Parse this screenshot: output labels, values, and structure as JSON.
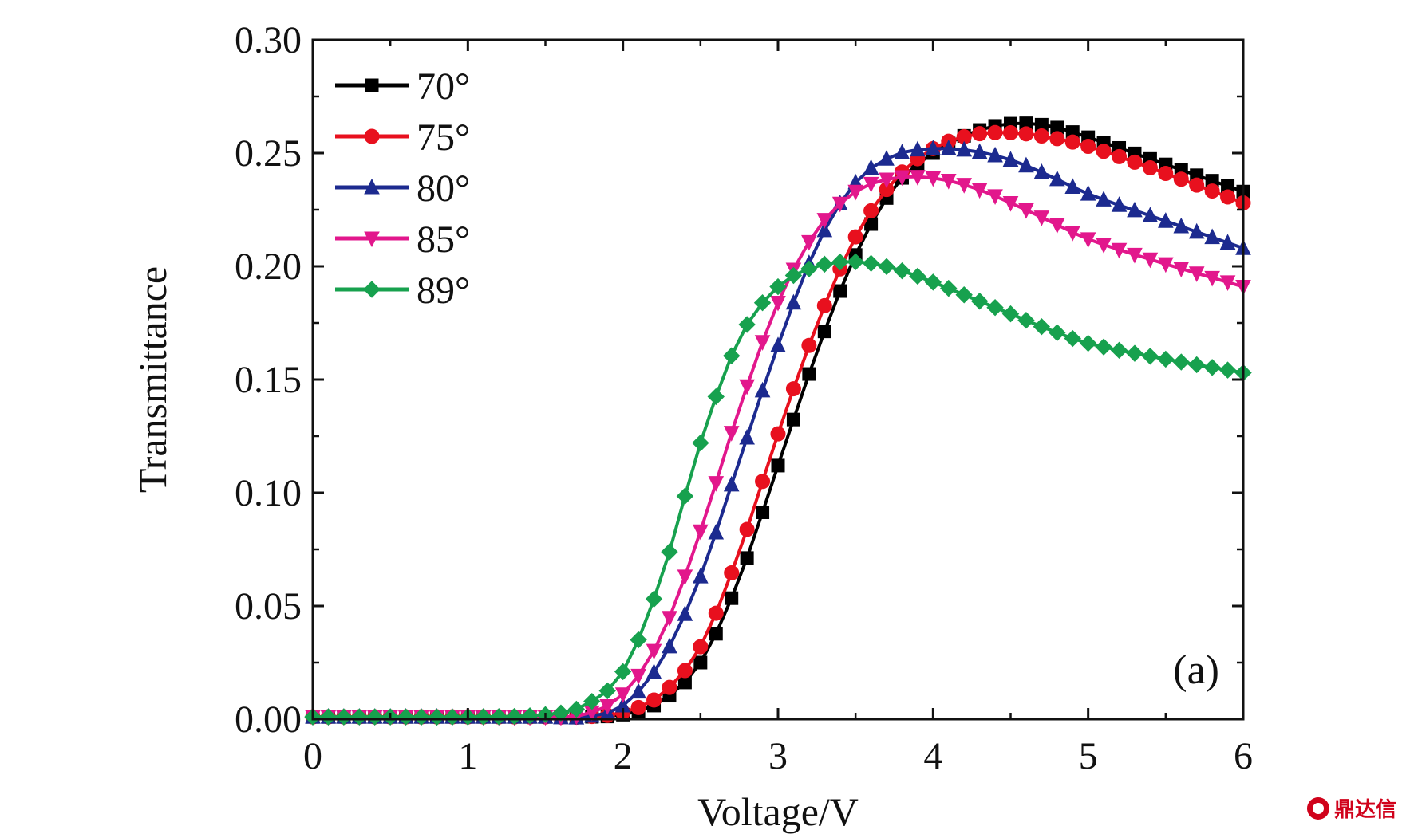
{
  "chart_data": {
    "type": "line",
    "title": "",
    "xlabel": "Voltage/V",
    "ylabel": "Transmittance",
    "xlim": [
      0,
      6
    ],
    "ylim": [
      0,
      0.3
    ],
    "xticks": [
      0,
      1,
      2,
      3,
      4,
      5,
      6
    ],
    "xtick_labels": [
      "0",
      "1",
      "2",
      "3",
      "4",
      "5",
      "6"
    ],
    "yticks": [
      0,
      0.05,
      0.1,
      0.15,
      0.2,
      0.25,
      0.3
    ],
    "ytick_labels": [
      "0.00",
      "0.05",
      "0.10",
      "0.15",
      "0.20",
      "0.25",
      "0.30"
    ],
    "grid": false,
    "legend_position": "top-left",
    "panel_label": "(a)",
    "x": [
      0.0,
      0.5,
      1.0,
      1.5,
      1.75,
      2.0,
      2.25,
      2.5,
      2.75,
      3.0,
      3.25,
      3.5,
      3.75,
      4.0,
      4.25,
      4.5,
      4.75,
      5.0,
      5.5,
      6.0
    ],
    "series": [
      {
        "name": "70°",
        "color": "#000000",
        "marker": "square",
        "values": [
          0.001,
          0.001,
          0.001,
          0.001,
          0.001,
          0.002,
          0.008,
          0.025,
          0.062,
          0.112,
          0.162,
          0.205,
          0.235,
          0.25,
          0.259,
          0.263,
          0.262,
          0.257,
          0.245,
          0.233
        ]
      },
      {
        "name": "75°",
        "color": "#e8101e",
        "marker": "circle",
        "values": [
          0.001,
          0.001,
          0.001,
          0.001,
          0.001,
          0.003,
          0.011,
          0.032,
          0.074,
          0.126,
          0.174,
          0.213,
          0.238,
          0.252,
          0.258,
          0.259,
          0.257,
          0.253,
          0.241,
          0.228
        ]
      },
      {
        "name": "80°",
        "color": "#1c2a8f",
        "marker": "triangle-up",
        "values": [
          0.001,
          0.001,
          0.001,
          0.001,
          0.001,
          0.006,
          0.026,
          0.063,
          0.114,
          0.165,
          0.209,
          0.237,
          0.249,
          0.252,
          0.251,
          0.247,
          0.24,
          0.232,
          0.22,
          0.208
        ]
      },
      {
        "name": "85°",
        "color": "#e2178c",
        "marker": "triangle-down",
        "values": [
          0.001,
          0.001,
          0.001,
          0.001,
          0.002,
          0.011,
          0.037,
          0.083,
          0.137,
          0.184,
          0.216,
          0.233,
          0.239,
          0.239,
          0.235,
          0.228,
          0.22,
          0.212,
          0.201,
          0.191
        ]
      },
      {
        "name": "89°",
        "color": "#17a14e",
        "marker": "diamond",
        "values": [
          0.001,
          0.001,
          0.001,
          0.002,
          0.006,
          0.021,
          0.063,
          0.122,
          0.168,
          0.191,
          0.2,
          0.202,
          0.199,
          0.193,
          0.186,
          0.179,
          0.172,
          0.166,
          0.159,
          0.153
        ]
      }
    ]
  },
  "watermark": {
    "text": "鼎达信"
  }
}
